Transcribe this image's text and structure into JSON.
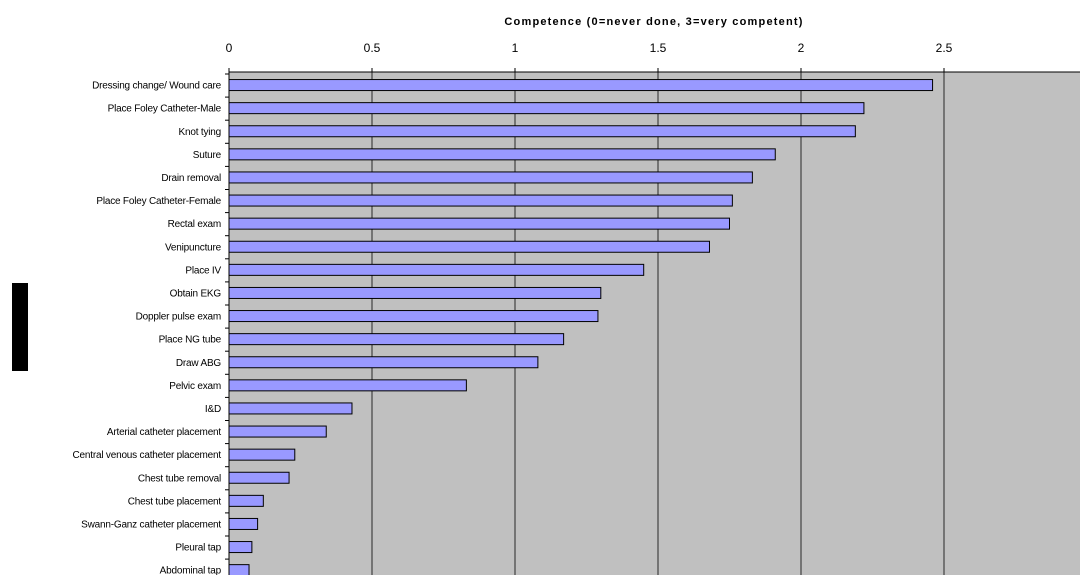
{
  "chart_data": {
    "type": "bar",
    "orientation": "horizontal",
    "title": "",
    "xlabel": "Competence (0=never done, 3=very competent)",
    "ylabel": "",
    "xlim": [
      0,
      3
    ],
    "xticks": [
      "0",
      "0.5",
      "1",
      "1.5",
      "2",
      "2.5"
    ],
    "x_axis_position": "top",
    "grid": true,
    "legend": "none",
    "plot_background": "#C0C0C0",
    "bar_color": "#9999FF",
    "bar_edge_color": "#000000",
    "categories": [
      "Dressing change/ Wound care",
      "Place Foley Catheter-Male",
      "Knot tying",
      "Suture",
      "Drain removal",
      "Place Foley Catheter-Female",
      "Rectal exam",
      "Venipuncture",
      "Place IV",
      "Obtain EKG",
      "Doppler pulse exam",
      "Place NG tube",
      "Draw ABG",
      "Pelvic exam",
      "I&D",
      "Arterial catheter placement",
      "Central venous catheter placement",
      "Chest tube removal",
      "Chest tube placement",
      "Swann-Ganz catheter placement",
      "Pleural tap",
      "Abdominal tap"
    ],
    "values": [
      2.46,
      2.22,
      2.19,
      1.91,
      1.83,
      1.76,
      1.75,
      1.68,
      1.45,
      1.3,
      1.29,
      1.17,
      1.08,
      0.83,
      0.43,
      0.34,
      0.23,
      0.21,
      0.12,
      0.1,
      0.08,
      0.07
    ]
  }
}
